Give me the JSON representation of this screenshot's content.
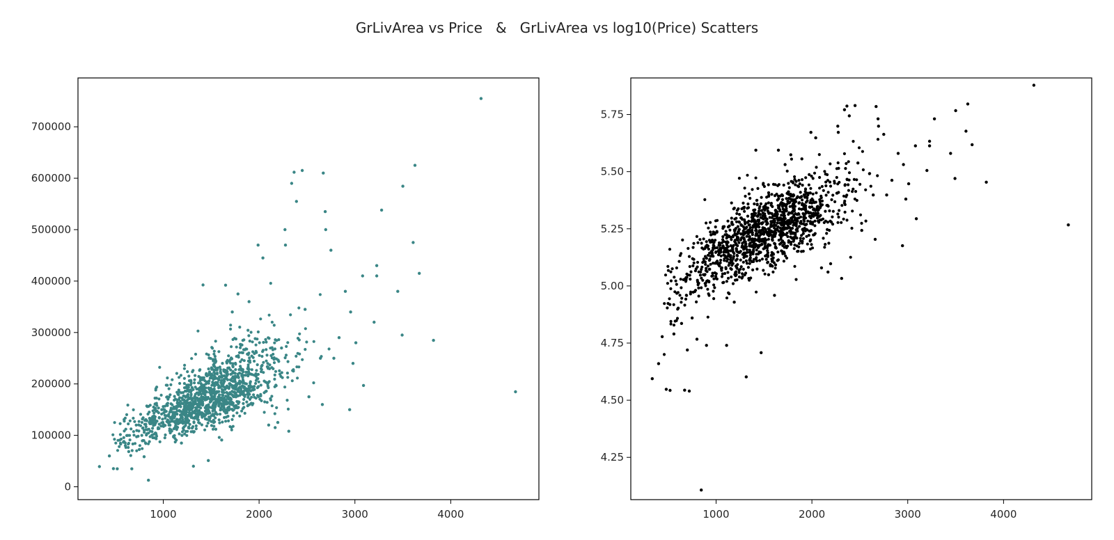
{
  "figure": {
    "title": "GrLivArea vs Price   &   GrLivArea vs log10(Price) Scatters"
  },
  "chart_data": [
    {
      "type": "scatter",
      "title": "",
      "xlabel": "",
      "ylabel": "",
      "xlim": [
        110,
        4920
      ],
      "ylim": [
        -25000,
        795000
      ],
      "grid": false,
      "color": "#3a8686",
      "x_ticks": [
        1000,
        2000,
        3000,
        4000
      ],
      "y_ticks": [
        0,
        100000,
        200000,
        300000,
        400000,
        500000,
        600000,
        700000
      ],
      "x_tick_labels": [
        "1000",
        "2000",
        "3000",
        "4000"
      ],
      "y_tick_labels": [
        "0",
        "100000",
        "200000",
        "300000",
        "400000",
        "500000",
        "600000",
        "700000"
      ],
      "points": [
        [
          334,
          39300
        ],
        [
          438,
          60000
        ],
        [
          480,
          35311
        ],
        [
          520,
          34900
        ],
        [
          605,
          80000
        ],
        [
          640,
          68500
        ],
        [
          672,
          35000
        ],
        [
          750,
          72500
        ],
        [
          800,
          58500
        ],
        [
          845,
          12789
        ],
        [
          900,
          155000
        ],
        [
          985,
          150000
        ],
        [
          1060,
          120000
        ],
        [
          1190,
          85000
        ],
        [
          1315,
          40000
        ],
        [
          1415,
          392500
        ],
        [
          1470,
          51000
        ],
        [
          1548,
          112000
        ],
        [
          1610,
          91000
        ],
        [
          1650,
          392000
        ],
        [
          1720,
          340000
        ],
        [
          1780,
          375000
        ],
        [
          1895,
          360000
        ],
        [
          1990,
          470000
        ],
        [
          2040,
          445000
        ],
        [
          2100,
          120000
        ],
        [
          2168,
          115000
        ],
        [
          2195,
          125000
        ],
        [
          2270,
          500000
        ],
        [
          2275,
          470000
        ],
        [
          2310,
          108000
        ],
        [
          2340,
          590000
        ],
        [
          2365,
          611657
        ],
        [
          2390,
          555000
        ],
        [
          2450,
          615000
        ],
        [
          2480,
          345000
        ],
        [
          2520,
          175000
        ],
        [
          2640,
          250000
        ],
        [
          2660,
          160000
        ],
        [
          2670,
          610000
        ],
        [
          2690,
          535000
        ],
        [
          2695,
          500000
        ],
        [
          2750,
          460000
        ],
        [
          2780,
          250000
        ],
        [
          2835,
          290000
        ],
        [
          2900,
          380000
        ],
        [
          2945,
          150000
        ],
        [
          2955,
          340000
        ],
        [
          2980,
          240000
        ],
        [
          3010,
          280000
        ],
        [
          3080,
          410000
        ],
        [
          3090,
          197000
        ],
        [
          3200,
          320000
        ],
        [
          3228,
          430000
        ],
        [
          3228,
          410000
        ],
        [
          3279,
          538000
        ],
        [
          3447,
          380000
        ],
        [
          3493,
          295000
        ],
        [
          3500,
          584500
        ],
        [
          3608,
          475000
        ],
        [
          3627,
          625000
        ],
        [
          3672,
          415000
        ],
        [
          3820,
          284700
        ],
        [
          4316,
          755000
        ],
        [
          4676,
          184750
        ]
      ]
    },
    {
      "type": "scatter",
      "title": "",
      "xlabel": "",
      "ylabel": "",
      "xlim": [
        110,
        4920
      ],
      "ylim": [
        4.065,
        5.91
      ],
      "grid": false,
      "color": "#000000",
      "x_ticks": [
        1000,
        2000,
        3000,
        4000
      ],
      "y_ticks": [
        4.25,
        4.5,
        4.75,
        5.0,
        5.25,
        5.5,
        5.75
      ],
      "x_tick_labels": [
        "1000",
        "2000",
        "3000",
        "4000"
      ],
      "y_tick_labels": [
        "4.25",
        "4.50",
        "4.75",
        "5.00",
        "5.25",
        "5.50",
        "5.75"
      ],
      "points": [
        [
          334,
          4.594
        ],
        [
          400,
          4.66
        ],
        [
          438,
          4.778
        ],
        [
          480,
          4.548
        ],
        [
          520,
          4.543
        ],
        [
          560,
          4.79
        ],
        [
          605,
          4.903
        ],
        [
          640,
          4.836
        ],
        [
          672,
          4.544
        ],
        [
          700,
          4.72
        ],
        [
          720,
          4.54
        ],
        [
          750,
          4.86
        ],
        [
          800,
          4.767
        ],
        [
          845,
          4.107
        ],
        [
          900,
          4.74
        ],
        [
          960,
          5.2
        ],
        [
          1060,
          5.079
        ],
        [
          1110,
          4.74
        ],
        [
          1190,
          4.929
        ],
        [
          1315,
          4.602
        ],
        [
          1415,
          5.594
        ],
        [
          1470,
          4.708
        ],
        [
          1548,
          5.049
        ],
        [
          1610,
          4.959
        ],
        [
          1650,
          5.594
        ],
        [
          1720,
          5.531
        ],
        [
          1780,
          5.574
        ],
        [
          1895,
          5.556
        ],
        [
          1990,
          5.672
        ],
        [
          2040,
          5.648
        ],
        [
          2100,
          5.079
        ],
        [
          2168,
          5.061
        ],
        [
          2195,
          5.097
        ],
        [
          2270,
          5.699
        ],
        [
          2275,
          5.672
        ],
        [
          2310,
          5.033
        ],
        [
          2340,
          5.771
        ],
        [
          2365,
          5.787
        ],
        [
          2390,
          5.744
        ],
        [
          2450,
          5.789
        ],
        [
          2480,
          5.538
        ],
        [
          2520,
          5.243
        ],
        [
          2640,
          5.398
        ],
        [
          2660,
          5.204
        ],
        [
          2670,
          5.785
        ],
        [
          2690,
          5.731
        ],
        [
          2695,
          5.699
        ],
        [
          2750,
          5.663
        ],
        [
          2780,
          5.398
        ],
        [
          2835,
          5.462
        ],
        [
          2900,
          5.58
        ],
        [
          2945,
          5.176
        ],
        [
          2955,
          5.531
        ],
        [
          2980,
          5.38
        ],
        [
          3010,
          5.447
        ],
        [
          3080,
          5.613
        ],
        [
          3090,
          5.294
        ],
        [
          3200,
          5.505
        ],
        [
          3228,
          5.633
        ],
        [
          3228,
          5.613
        ],
        [
          3279,
          5.731
        ],
        [
          3447,
          5.58
        ],
        [
          3493,
          5.47
        ],
        [
          3500,
          5.767
        ],
        [
          3608,
          5.677
        ],
        [
          3627,
          5.796
        ],
        [
          3672,
          5.618
        ],
        [
          3820,
          5.454
        ],
        [
          4316,
          5.878
        ],
        [
          4676,
          5.267
        ]
      ]
    }
  ]
}
